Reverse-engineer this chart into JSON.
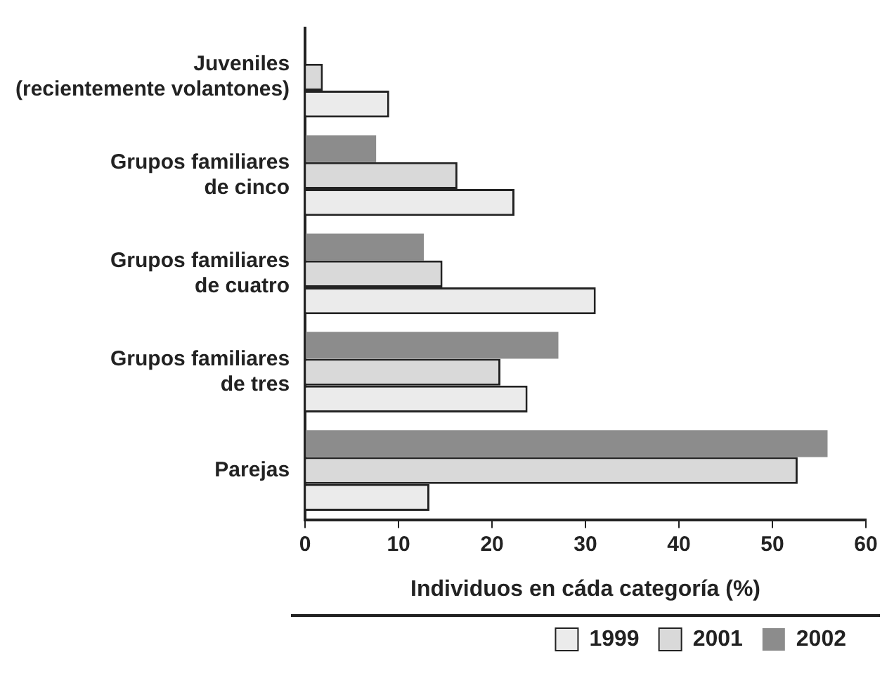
{
  "chart_data": {
    "type": "bar",
    "orientation": "horizontal",
    "xlabel": "Individuos en cáda categoría (%)",
    "categories": [
      "Juveniles\n(recientemente volantones)",
      "Grupos familiares\nde cinco",
      "Grupos familiares\nde cuatro",
      "Grupos familiares\nde tres",
      "Parejas"
    ],
    "series": [
      {
        "name": "2002",
        "color": "#8c8c8c",
        "values": [
          null,
          7.6,
          12.7,
          27.1,
          55.9
        ]
      },
      {
        "name": "2001",
        "color": "#d9d9d9",
        "values": [
          1.9,
          16.3,
          14.7,
          20.9,
          52.7
        ]
      },
      {
        "name": "1999",
        "color": "#ebebeb",
        "values": [
          9.0,
          22.4,
          31.1,
          23.8,
          13.3
        ]
      }
    ],
    "xlim": [
      0,
      60
    ],
    "xticks": [
      0,
      10,
      20,
      30,
      40,
      50,
      60
    ],
    "grid": false,
    "legend": "bottom right"
  }
}
